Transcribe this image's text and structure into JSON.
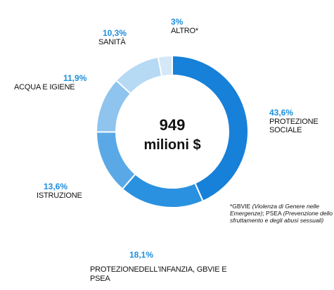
{
  "chart_data": {
    "type": "pie",
    "donut": true,
    "center_value": "949",
    "center_unit": "milioni $",
    "slices": [
      {
        "value": 43.6,
        "pct_label": "43,6%",
        "label": "PROTEZIONE SOCIALE",
        "color": "#1780d9"
      },
      {
        "value": 18.1,
        "pct_label": "18,1%",
        "label": "PROTEZIONEDELL'INFANZIA, GBVIE E PSEA",
        "color": "#2a91e0"
      },
      {
        "value": 13.6,
        "pct_label": "13,6%",
        "label": "ISTRUZIONE",
        "color": "#5aa9e6"
      },
      {
        "value": 11.9,
        "pct_label": "11,9%",
        "label": "ACQUA E IGIENE",
        "color": "#8ec4ee"
      },
      {
        "value": 10.3,
        "pct_label": "10,3%",
        "label": "SANITÀ",
        "color": "#b6d9f4"
      },
      {
        "value": 3.0,
        "pct_label": "3%",
        "label": "ALTRO*",
        "color": "#d4e8f8"
      }
    ],
    "footnote": {
      "t1": "*GBVIE ",
      "t1i": "(Violenza di Genere nelle Emergenze)",
      "t2": "; PSEA ",
      "t2i": "(Prevenzione dello sfruttamento e degli abusi sessuali)"
    }
  }
}
